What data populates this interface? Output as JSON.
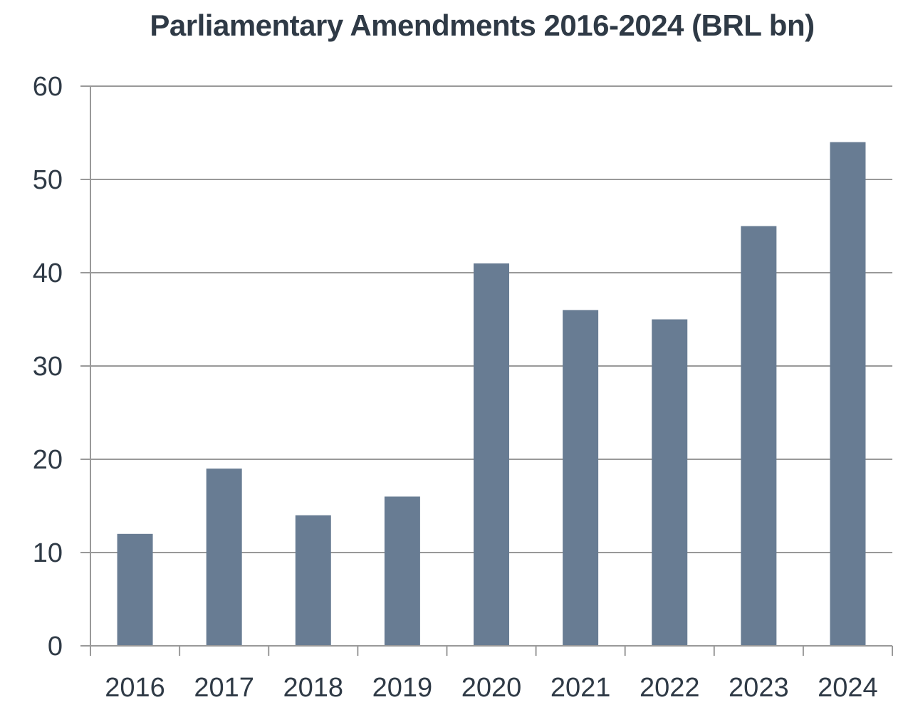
{
  "chart_data": {
    "type": "bar",
    "title": "Parliamentary Amendments 2016-2024 (BRL bn)",
    "xlabel": "",
    "ylabel": "",
    "categories": [
      "2016",
      "2017",
      "2018",
      "2019",
      "2020",
      "2021",
      "2022",
      "2023",
      "2024"
    ],
    "values": [
      12,
      19,
      14,
      16,
      41,
      36,
      35,
      45,
      54
    ],
    "ylim": [
      0,
      60
    ],
    "yticks": [
      0,
      10,
      20,
      30,
      40,
      50,
      60
    ],
    "grid": true,
    "legend": "none",
    "colors": {
      "bar": "#687c93",
      "grid": "#999999",
      "text": "#2f3a46"
    }
  }
}
